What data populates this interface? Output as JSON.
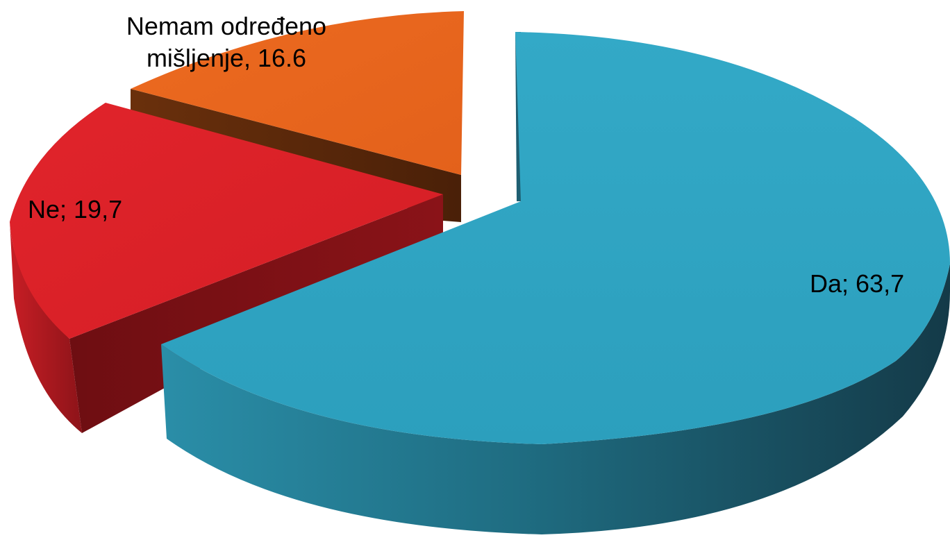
{
  "chart_data": {
    "type": "pie",
    "title": "",
    "three_d": true,
    "exploded": true,
    "slices": [
      {
        "label": "Da; 63,7",
        "name": "Da",
        "value": 63.7,
        "color": "#2fa3c1",
        "side_color": "#1c6478"
      },
      {
        "label": "Ne; 19,7",
        "name": "Ne",
        "value": 19.7,
        "color": "#d92027",
        "side_color": "#7e1116"
      },
      {
        "label_lines": [
          "Nemam određeno",
          "mišljenje, 16.6"
        ],
        "name": "Nemam određeno mišljenje",
        "value": 16.6,
        "color": "#e8651e",
        "side_color": "#5a2a0c"
      }
    ]
  }
}
